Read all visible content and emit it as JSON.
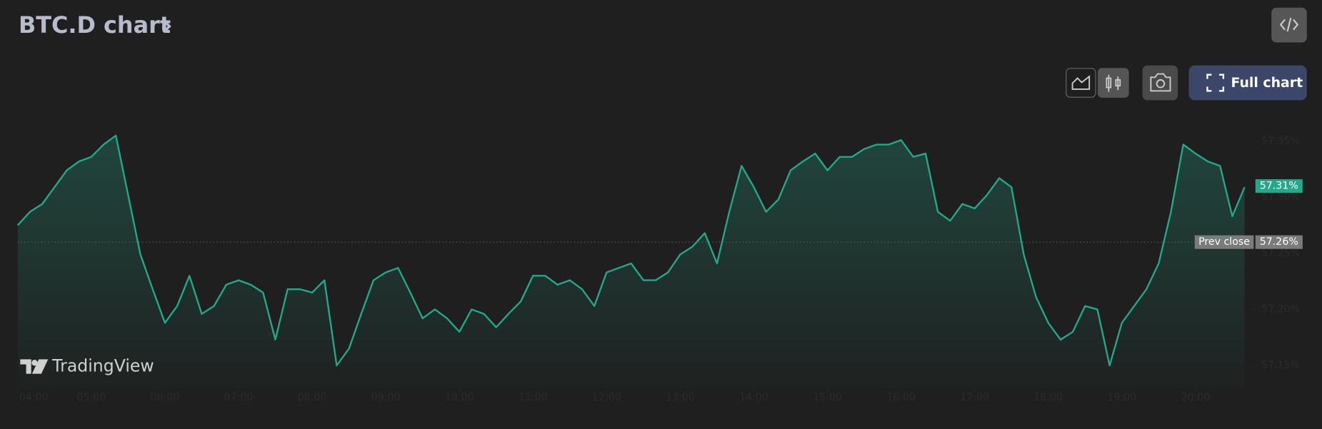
{
  "title": "BTC.D chart",
  "buttons": {
    "full_chart": "Full chart"
  },
  "watermark": "TradingView",
  "chart_data": {
    "type": "line",
    "x": [
      240,
      250,
      260,
      270,
      280,
      290,
      300,
      310,
      320,
      330,
      340,
      350,
      360,
      370,
      380,
      390,
      400,
      410,
      420,
      430,
      440,
      450,
      460,
      470,
      480,
      490,
      500,
      510,
      520,
      530,
      540,
      550,
      560,
      570,
      580,
      590,
      600,
      610,
      620,
      630,
      640,
      650,
      660,
      670,
      680,
      690,
      700,
      710,
      720,
      730,
      740,
      750,
      760,
      770,
      780,
      790,
      800,
      810,
      820,
      830,
      840,
      850,
      860,
      870,
      880,
      890,
      900,
      910,
      920,
      930,
      940,
      950,
      960,
      970,
      980,
      990,
      1000,
      1010,
      1020,
      1030,
      1040,
      1050,
      1060,
      1070,
      1080,
      1090,
      1100,
      1110,
      1120,
      1130,
      1140,
      1150,
      1160,
      1170,
      1180,
      1190,
      1200,
      1210,
      1220,
      1230,
      1240
    ],
    "series": [
      {
        "color": "#22a98a",
        "values": [
          57.275,
          57.287,
          57.294,
          57.309,
          57.324,
          57.332,
          57.336,
          57.347,
          57.355,
          57.302,
          57.249,
          57.218,
          57.188,
          57.203,
          57.23,
          57.196,
          57.203,
          57.222,
          57.226,
          57.222,
          57.215,
          57.173,
          57.218,
          57.218,
          57.215,
          57.226,
          57.15,
          57.165,
          57.196,
          57.226,
          57.233,
          57.237,
          57.215,
          57.192,
          57.2,
          57.192,
          57.18,
          57.2,
          57.196,
          57.184,
          57.196,
          57.207,
          57.23,
          57.23,
          57.222,
          57.226,
          57.218,
          57.203,
          57.233,
          57.237,
          57.241,
          57.226,
          57.226,
          57.233,
          57.249,
          57.256,
          57.268,
          57.241,
          57.287,
          57.328,
          57.309,
          57.287,
          57.298,
          57.324,
          57.332,
          57.339,
          57.324,
          57.336,
          57.336,
          57.343,
          57.347,
          57.347,
          57.351,
          57.336,
          57.339,
          57.287,
          57.279,
          57.294,
          57.29,
          57.302,
          57.317,
          57.309,
          57.249,
          57.211,
          57.188,
          57.173,
          57.18,
          57.203,
          57.2,
          57.15,
          57.188,
          57.203,
          57.218,
          57.241,
          57.287,
          57.347,
          57.339,
          57.332,
          57.328,
          57.283,
          57.309
        ]
      }
    ],
    "last_value": {
      "value": 57.31,
      "label": "57.31%"
    },
    "prev_close": {
      "name": "Prev close",
      "value": 57.26,
      "label": "57.26%"
    },
    "xlim": [
      240,
      1244
    ],
    "ylim": [
      57.13,
      57.38
    ],
    "xticks": [
      {
        "value": 240,
        "label": "04:00"
      },
      {
        "value": 300,
        "label": "05:00"
      },
      {
        "value": 360,
        "label": "06:00"
      },
      {
        "value": 420,
        "label": "07:00"
      },
      {
        "value": 480,
        "label": "08:00"
      },
      {
        "value": 540,
        "label": "09:00"
      },
      {
        "value": 600,
        "label": "10:00"
      },
      {
        "value": 660,
        "label": "11:00"
      },
      {
        "value": 720,
        "label": "12:00"
      },
      {
        "value": 780,
        "label": "13:00"
      },
      {
        "value": 840,
        "label": "14:00"
      },
      {
        "value": 900,
        "label": "15:00"
      },
      {
        "value": 960,
        "label": "16:00"
      },
      {
        "value": 1020,
        "label": "17:00"
      },
      {
        "value": 1080,
        "label": "18:00"
      },
      {
        "value": 1140,
        "label": "19:00"
      },
      {
        "value": 1200,
        "label": "20:00"
      }
    ],
    "yticks": [
      {
        "value": 57.15,
        "label": "57.15%"
      },
      {
        "value": 57.2,
        "label": "57.20%"
      },
      {
        "value": 57.25,
        "label": "57.25%"
      },
      {
        "value": 57.3,
        "label": "57.30%"
      },
      {
        "value": 57.35,
        "label": "57.35%"
      }
    ]
  }
}
